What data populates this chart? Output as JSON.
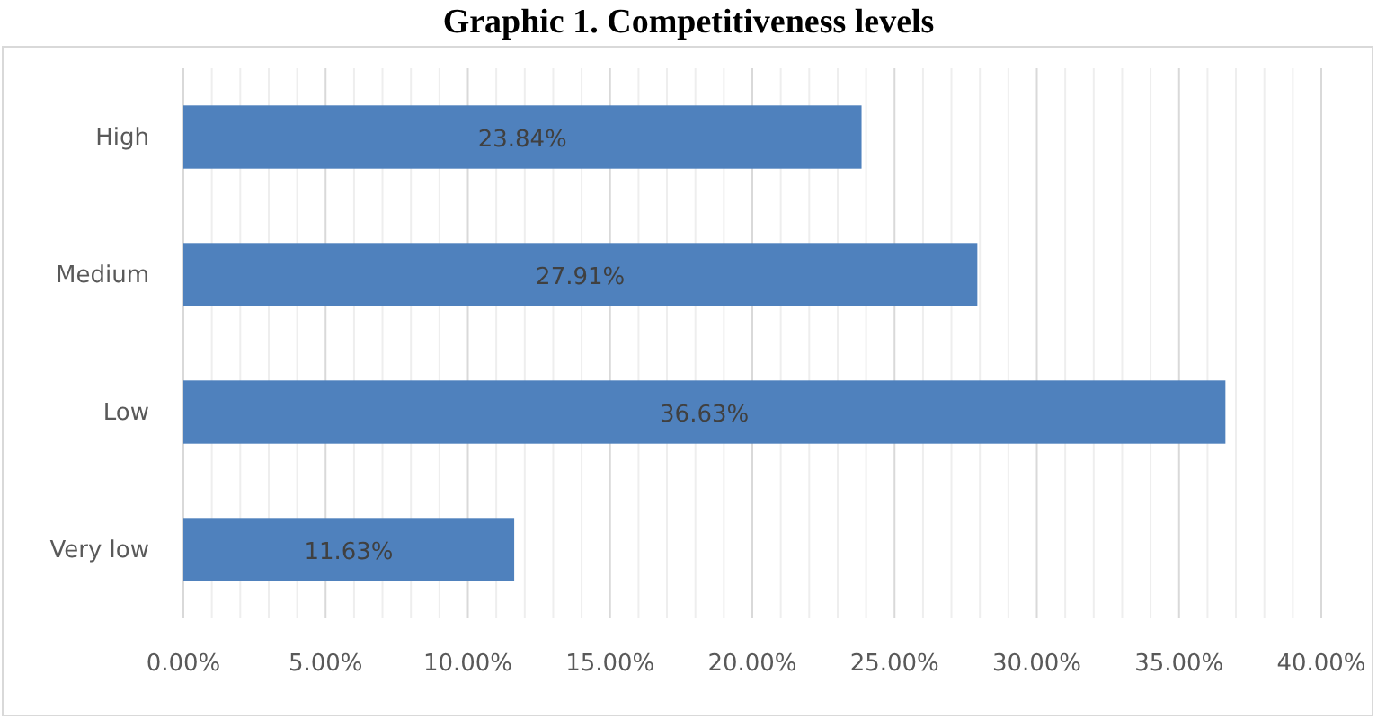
{
  "chart_data": {
    "type": "bar",
    "orientation": "horizontal",
    "title": "Graphic 1.  Competitiveness levels",
    "categories": [
      "High",
      "Medium",
      "Low",
      "Very low"
    ],
    "values": [
      23.84,
      27.91,
      36.63,
      11.63
    ],
    "value_labels": [
      "23.84%",
      "27.91%",
      "36.63%",
      "11.63%"
    ],
    "color": "#4f81bd",
    "xlim": [
      0,
      40
    ],
    "xticks": [
      {
        "value": 0,
        "label": "0.00%"
      },
      {
        "value": 1,
        "label": null
      },
      {
        "value": 2,
        "label": null
      },
      {
        "value": 3,
        "label": null
      },
      {
        "value": 4,
        "label": null
      },
      {
        "value": 5,
        "label": "5.00%"
      },
      {
        "value": 6,
        "label": null
      },
      {
        "value": 7,
        "label": null
      },
      {
        "value": 8,
        "label": null
      },
      {
        "value": 9,
        "label": null
      },
      {
        "value": 10,
        "label": "10.00%"
      },
      {
        "value": 11,
        "label": null
      },
      {
        "value": 12,
        "label": null
      },
      {
        "value": 13,
        "label": null
      },
      {
        "value": 14,
        "label": null
      },
      {
        "value": 15,
        "label": "15.00%"
      },
      {
        "value": 16,
        "label": null
      },
      {
        "value": 17,
        "label": null
      },
      {
        "value": 18,
        "label": null
      },
      {
        "value": 19,
        "label": null
      },
      {
        "value": 20,
        "label": "20.00%"
      },
      {
        "value": 21,
        "label": null
      },
      {
        "value": 22,
        "label": null
      },
      {
        "value": 23,
        "label": null
      },
      {
        "value": 24,
        "label": null
      },
      {
        "value": 25,
        "label": "25.00%"
      },
      {
        "value": 26,
        "label": null
      },
      {
        "value": 27,
        "label": null
      },
      {
        "value": 28,
        "label": null
      },
      {
        "value": 29,
        "label": null
      },
      {
        "value": 30,
        "label": "30.00%"
      },
      {
        "value": 31,
        "label": null
      },
      {
        "value": 32,
        "label": null
      },
      {
        "value": 33,
        "label": null
      },
      {
        "value": 34,
        "label": null
      },
      {
        "value": 35,
        "label": "35.00%"
      },
      {
        "value": 36,
        "label": null
      },
      {
        "value": 37,
        "label": null
      },
      {
        "value": 38,
        "label": null
      },
      {
        "value": 39,
        "label": null
      },
      {
        "value": 40,
        "label": "40.00%"
      }
    ],
    "grid": "x"
  }
}
